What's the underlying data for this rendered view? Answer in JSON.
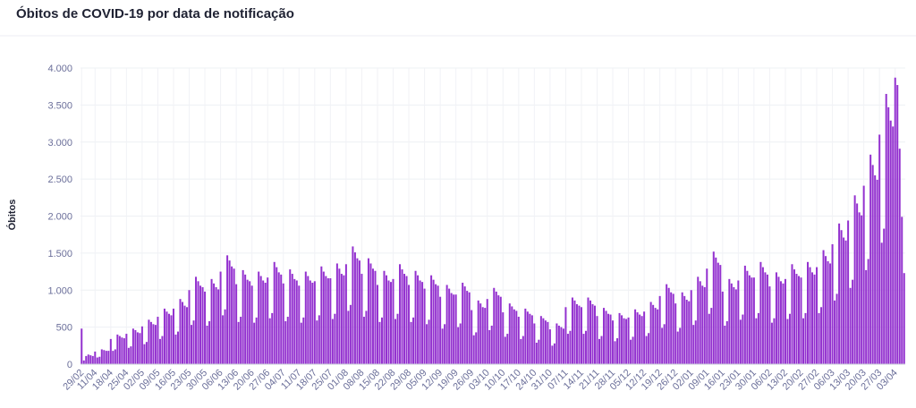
{
  "chart_data": {
    "type": "bar",
    "title": "Óbitos de COVID-19 por data de notificação",
    "y_label": "Óbitos",
    "color": "#9331cf",
    "grid": true,
    "ylim": [
      0,
      4000
    ],
    "yticks": [
      0,
      500,
      {
        "value": 1000,
        "label": "1.000"
      },
      {
        "value": 1500,
        "label": "1.500"
      },
      {
        "value": 2000,
        "label": "2.000"
      },
      {
        "value": 2500,
        "label": "2.500"
      },
      {
        "value": 3000,
        "label": "3.000"
      },
      {
        "value": 3500,
        "label": "3.500"
      },
      {
        "value": 4000,
        "label": "4.000"
      }
    ],
    "categories": [
      "29/02",
      null,
      null,
      null,
      null,
      null,
      "11/04",
      null,
      null,
      null,
      null,
      null,
      null,
      "18/04",
      null,
      null,
      null,
      null,
      null,
      null,
      "25/04",
      null,
      null,
      null,
      null,
      null,
      null,
      "02/05",
      null,
      null,
      null,
      null,
      null,
      null,
      "09/05",
      null,
      null,
      null,
      null,
      null,
      null,
      "16/05",
      null,
      null,
      null,
      null,
      null,
      null,
      "23/05",
      null,
      null,
      null,
      null,
      null,
      null,
      "30/05",
      null,
      null,
      null,
      null,
      null,
      null,
      "06/06",
      null,
      null,
      null,
      null,
      null,
      null,
      "13/06",
      null,
      null,
      null,
      null,
      null,
      null,
      "20/06",
      null,
      null,
      null,
      null,
      null,
      null,
      "27/06",
      null,
      null,
      null,
      null,
      null,
      null,
      "04/07",
      null,
      null,
      null,
      null,
      null,
      null,
      "11/07",
      null,
      null,
      null,
      null,
      null,
      null,
      "18/07",
      null,
      null,
      null,
      null,
      null,
      null,
      "25/07",
      null,
      null,
      null,
      null,
      null,
      null,
      "01/08",
      null,
      null,
      null,
      null,
      null,
      null,
      "08/08",
      null,
      null,
      null,
      null,
      null,
      null,
      "15/08",
      null,
      null,
      null,
      null,
      null,
      null,
      "22/08",
      null,
      null,
      null,
      null,
      null,
      null,
      "29/08",
      null,
      null,
      null,
      null,
      null,
      null,
      "05/09",
      null,
      null,
      null,
      null,
      null,
      null,
      "12/09",
      null,
      null,
      null,
      null,
      null,
      null,
      "19/09",
      null,
      null,
      null,
      null,
      null,
      null,
      "26/09",
      null,
      null,
      null,
      null,
      null,
      null,
      "03/10",
      null,
      null,
      null,
      null,
      null,
      null,
      "10/10",
      null,
      null,
      null,
      null,
      null,
      null,
      "17/10",
      null,
      null,
      null,
      null,
      null,
      null,
      "24/10",
      null,
      null,
      null,
      null,
      null,
      null,
      "31/10",
      null,
      null,
      null,
      null,
      null,
      null,
      "07/11",
      null,
      null,
      null,
      null,
      null,
      null,
      "14/11",
      null,
      null,
      null,
      null,
      null,
      null,
      "21/11",
      null,
      null,
      null,
      null,
      null,
      null,
      "28/11",
      null,
      null,
      null,
      null,
      null,
      null,
      "05/12",
      null,
      null,
      null,
      null,
      null,
      null,
      "12/12",
      null,
      null,
      null,
      null,
      null,
      null,
      "19/12",
      null,
      null,
      null,
      null,
      null,
      null,
      "26/12",
      null,
      null,
      null,
      null,
      null,
      null,
      "02/01",
      null,
      null,
      null,
      null,
      null,
      null,
      "09/01",
      null,
      null,
      null,
      null,
      null,
      null,
      "16/01",
      null,
      null,
      null,
      null,
      null,
      null,
      "23/01",
      null,
      null,
      null,
      null,
      null,
      null,
      "30/01",
      null,
      null,
      null,
      null,
      null,
      null,
      "06/02",
      null,
      null,
      null,
      null,
      null,
      null,
      "13/02",
      null,
      null,
      null,
      null,
      null,
      null,
      "20/02",
      null,
      null,
      null,
      null,
      null,
      null,
      "27/02",
      null,
      null,
      null,
      null,
      null,
      null,
      "06/03",
      null,
      null,
      null,
      null,
      null,
      null,
      "13/03",
      null,
      null,
      null,
      null,
      null,
      null,
      "20/03",
      null,
      null,
      null,
      null,
      null,
      null,
      "27/03",
      null,
      null,
      null,
      null,
      null,
      null,
      "03/04",
      null,
      null,
      null,
      null
    ],
    "values": [
      480,
      50,
      110,
      130,
      120,
      110,
      170,
      90,
      100,
      200,
      190,
      180,
      180,
      340,
      180,
      200,
      400,
      380,
      360,
      350,
      410,
      220,
      240,
      480,
      460,
      430,
      420,
      510,
      270,
      300,
      600,
      570,
      540,
      530,
      640,
      340,
      380,
      750,
      710,
      680,
      660,
      750,
      400,
      440,
      880,
      840,
      790,
      770,
      1000,
      530,
      590,
      1180,
      1120,
      1060,
      1040,
      980,
      520,
      580,
      1150,
      1090,
      1040,
      1010,
      1250,
      660,
      740,
      1470,
      1400,
      1320,
      1290,
      1080,
      570,
      640,
      1270,
      1210,
      1140,
      1120,
      1060,
      560,
      630,
      1250,
      1190,
      1130,
      1100,
      1170,
      620,
      690,
      1380,
      1310,
      1240,
      1210,
      1090,
      580,
      640,
      1280,
      1220,
      1150,
      1130,
      1060,
      560,
      630,
      1250,
      1190,
      1130,
      1100,
      1120,
      590,
      660,
      1320,
      1250,
      1190,
      1160,
      1160,
      610,
      680,
      1360,
      1290,
      1220,
      1200,
      1350,
      720,
      800,
      1590,
      1510,
      1430,
      1400,
      1220,
      640,
      720,
      1430,
      1360,
      1290,
      1260,
      1070,
      570,
      630,
      1260,
      1200,
      1130,
      1110,
      1150,
      610,
      680,
      1350,
      1280,
      1220,
      1190,
      1070,
      570,
      630,
      1260,
      1200,
      1130,
      1110,
      1020,
      540,
      600,
      1200,
      1140,
      1080,
      1060,
      910,
      480,
      540,
      1070,
      1020,
      960,
      940,
      940,
      500,
      550,
      1100,
      1050,
      990,
      970,
      730,
      390,
      430,
      860,
      820,
      770,
      760,
      880,
      460,
      520,
      1030,
      980,
      930,
      910,
      700,
      370,
      410,
      820,
      780,
      740,
      720,
      640,
      340,
      380,
      750,
      710,
      680,
      660,
      550,
      290,
      330,
      650,
      620,
      590,
      570,
      470,
      250,
      280,
      550,
      520,
      500,
      480,
      770,
      410,
      450,
      900,
      860,
      810,
      790,
      770,
      410,
      450,
      900,
      860,
      810,
      790,
      650,
      340,
      380,
      760,
      720,
      680,
      670,
      590,
      310,
      350,
      690,
      660,
      620,
      610,
      630,
      330,
      370,
      740,
      700,
      670,
      650,
      710,
      380,
      420,
      840,
      800,
      760,
      740,
      920,
      490,
      540,
      1080,
      1030,
      970,
      950,
      820,
      440,
      490,
      970,
      920,
      870,
      850,
      1000,
      530,
      590,
      1180,
      1120,
      1060,
      1040,
      1290,
      680,
      760,
      1520,
      1440,
      1370,
      1340,
      980,
      520,
      580,
      1150,
      1090,
      1040,
      1010,
      1130,
      600,
      670,
      1330,
      1260,
      1200,
      1170,
      1170,
      620,
      690,
      1380,
      1310,
      1240,
      1210,
      1050,
      560,
      620,
      1240,
      1180,
      1120,
      1090,
      1150,
      610,
      680,
      1350,
      1280,
      1220,
      1190,
      1170,
      620,
      690,
      1380,
      1310,
      1240,
      1210,
      1310,
      690,
      770,
      1540,
      1460,
      1390,
      1360,
      1620,
      860,
      950,
      1900,
      1810,
      1710,
      1670,
      1940,
      1030,
      1140,
      2280,
      2170,
      2050,
      2010,
      2410,
      1270,
      1420,
      2830,
      2690,
      2550,
      2490,
      3100,
      1640,
      1830,
      3650,
      3470,
      3290,
      3210,
      3870,
      3770,
      2910,
      1990,
      1230
    ]
  }
}
